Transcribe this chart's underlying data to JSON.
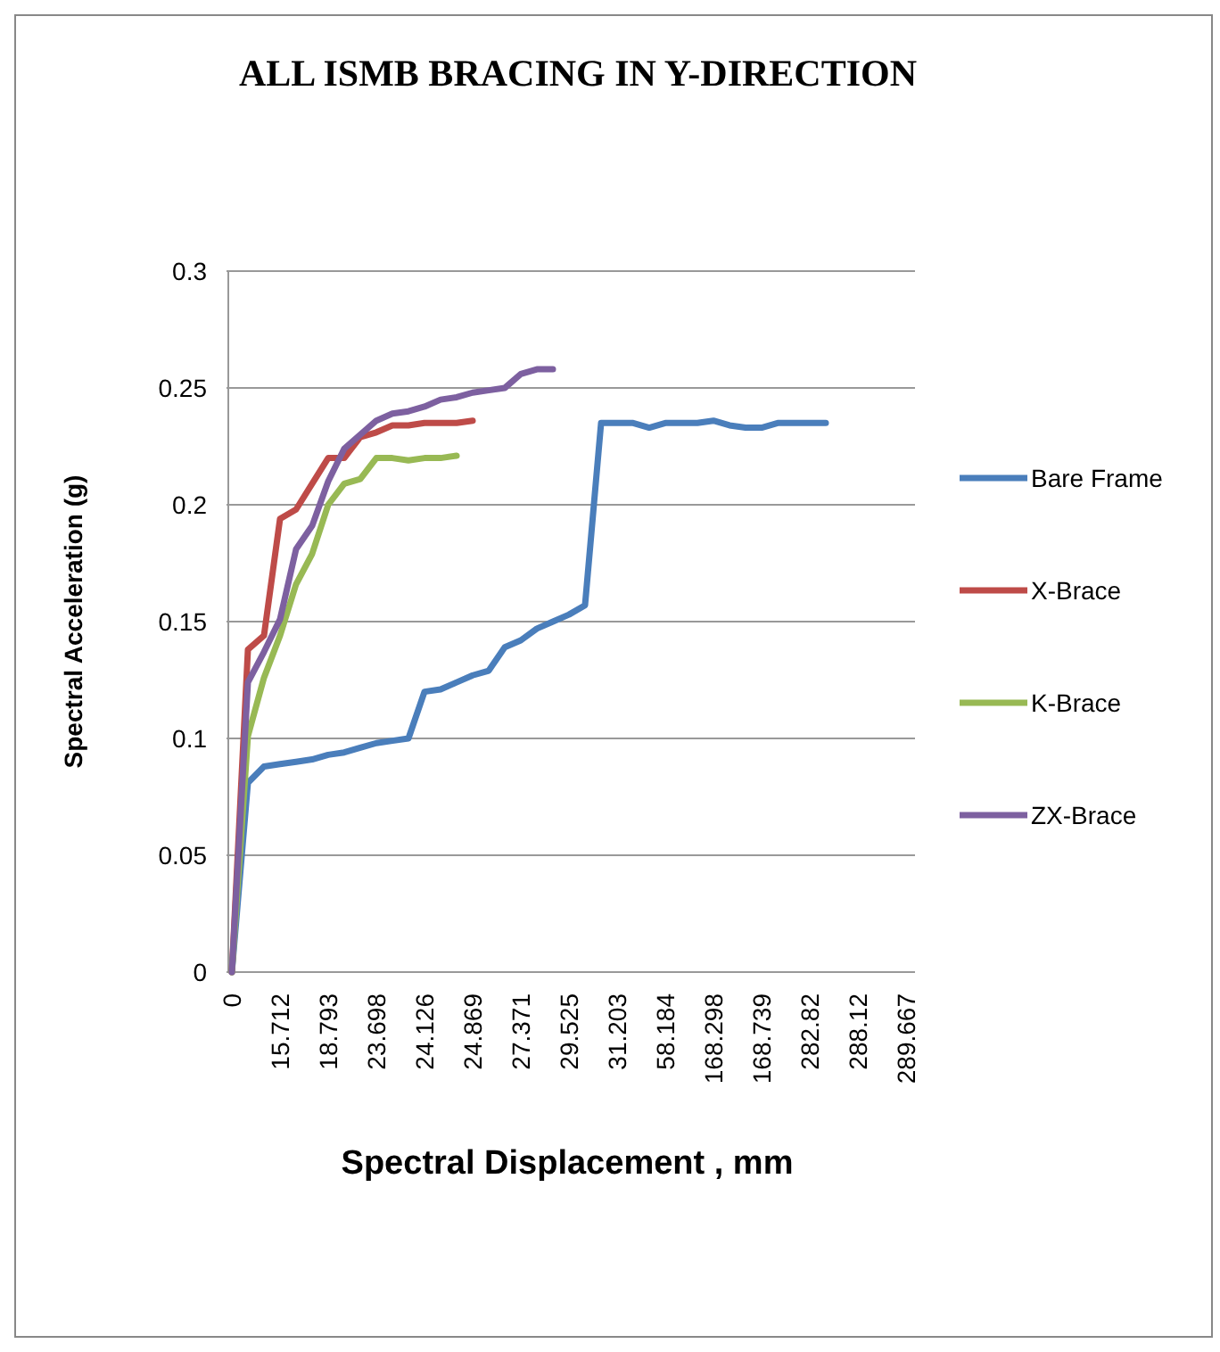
{
  "chart_data": {
    "type": "line",
    "title": "ALL ISMB BRACING IN Y-DIRECTION",
    "xlabel": "Spectral Displacement , mm",
    "ylabel": "Spectral Acceleration (g)",
    "categories": [
      "0",
      null,
      null,
      "15.712",
      null,
      null,
      "18.793",
      null,
      null,
      "23.698",
      null,
      null,
      "24.126",
      null,
      null,
      "24.869",
      null,
      null,
      "27.371",
      null,
      null,
      "29.525",
      null,
      null,
      "31.203",
      null,
      null,
      "58.184",
      null,
      null,
      "168.298",
      null,
      null,
      "168.739",
      null,
      null,
      "282.82",
      null,
      null,
      "288.12",
      null,
      null,
      "289.667"
    ],
    "series": [
      {
        "name": "Bare Frame",
        "color": "#4a7ebb",
        "values": [
          0,
          0.081,
          0.088,
          0.089,
          0.09,
          0.091,
          0.093,
          0.094,
          0.096,
          0.098,
          0.099,
          0.1,
          0.12,
          0.121,
          0.124,
          0.127,
          0.129,
          0.139,
          0.142,
          0.147,
          0.15,
          0.153,
          0.157,
          0.235,
          0.235,
          0.235,
          0.233,
          0.235,
          0.235,
          0.235,
          0.236,
          0.234,
          0.233,
          0.233,
          0.235,
          0.235,
          0.235,
          0.235,
          null,
          null,
          null,
          null,
          null
        ]
      },
      {
        "name": "X-Brace",
        "color": "#be4b48",
        "values": [
          0,
          0.138,
          0.144,
          0.194,
          0.198,
          0.209,
          0.22,
          0.22,
          0.229,
          0.231,
          0.234,
          0.234,
          0.235,
          0.235,
          0.235,
          0.236,
          null,
          null,
          null,
          null,
          null,
          null,
          null,
          null,
          null,
          null,
          null,
          null,
          null,
          null,
          null,
          null,
          null,
          null,
          null,
          null,
          null,
          null,
          null,
          null,
          null,
          null,
          null
        ]
      },
      {
        "name": "K-Brace",
        "color": "#98b954",
        "values": [
          0,
          0.101,
          0.126,
          0.144,
          0.166,
          0.179,
          0.2,
          0.209,
          0.211,
          0.22,
          0.22,
          0.219,
          0.22,
          0.22,
          0.221,
          null,
          null,
          null,
          null,
          null,
          null,
          null,
          null,
          null,
          null,
          null,
          null,
          null,
          null,
          null,
          null,
          null,
          null,
          null,
          null,
          null,
          null,
          null,
          null,
          null,
          null,
          null,
          null
        ]
      },
      {
        "name": "ZX-Brace",
        "color": "#7d60a0",
        "values": [
          0,
          0.124,
          0.137,
          0.151,
          0.181,
          0.191,
          0.21,
          0.224,
          0.23,
          0.236,
          0.239,
          0.24,
          0.242,
          0.245,
          0.246,
          0.248,
          0.249,
          0.25,
          0.256,
          0.258,
          0.258,
          null,
          null,
          null,
          null,
          null,
          null,
          null,
          null,
          null,
          null,
          null,
          null,
          null,
          null,
          null,
          null,
          null,
          null,
          null,
          null,
          null,
          null
        ]
      }
    ],
    "ylim": [
      0,
      0.3
    ],
    "yticks": [
      0,
      0.05,
      0.1,
      0.15,
      0.2,
      0.25,
      0.3
    ],
    "grid": "y",
    "legend": "right",
    "marker": "none",
    "line_style": "solid"
  }
}
